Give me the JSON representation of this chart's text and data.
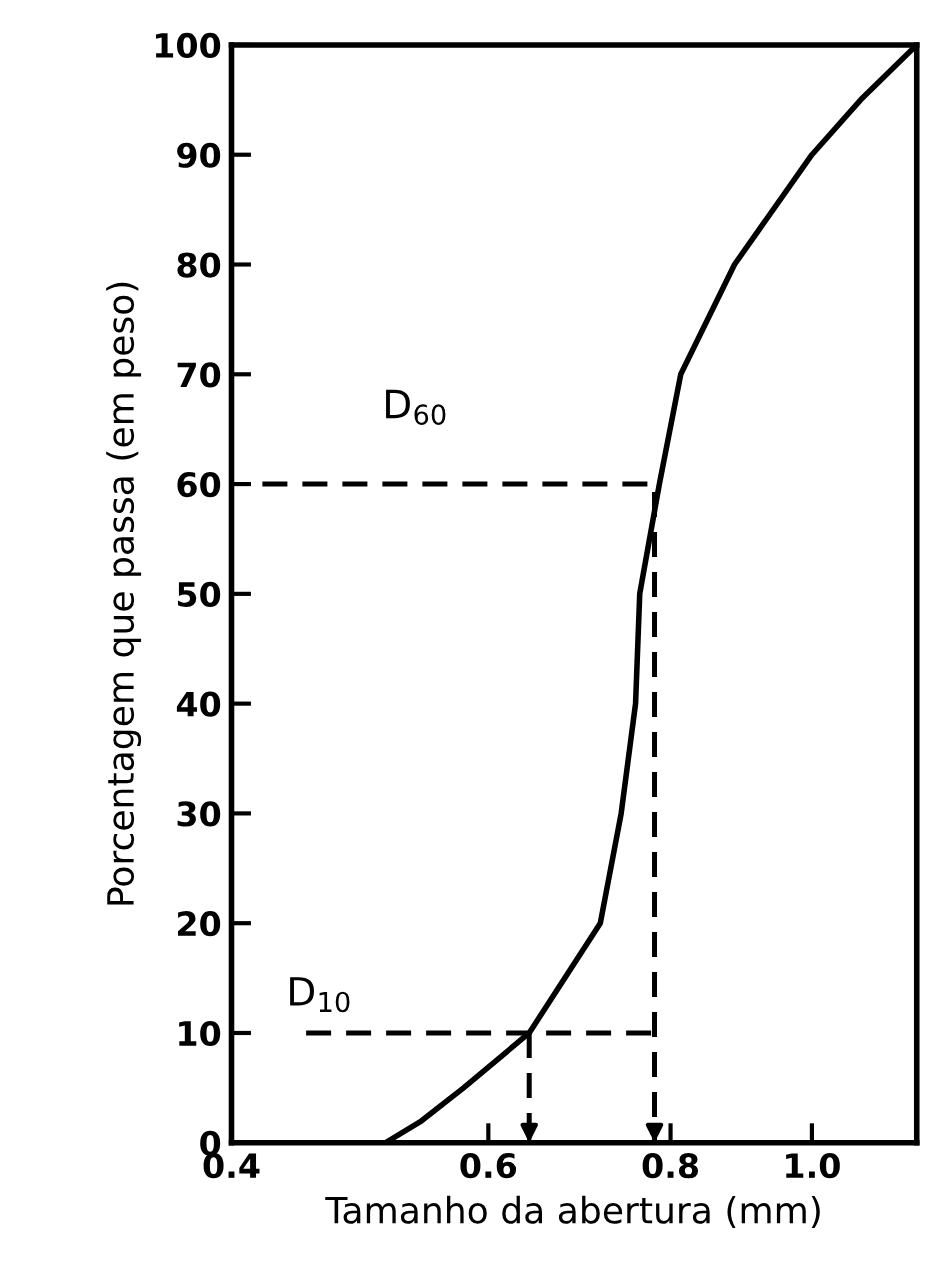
{
  "chart_data": {
    "type": "line",
    "xlabel": "Tamanho da abertura (mm)",
    "ylabel": "Porcentagem que passa (em peso)",
    "log": "x",
    "xlim": [
      0.4,
      1.18
    ],
    "ylim": [
      0,
      100
    ],
    "xticks": [
      {
        "value": 0.4,
        "label": "0.4"
      },
      {
        "value": 0.6,
        "label": "0.6"
      },
      {
        "value": 0.8,
        "label": "0.8"
      },
      {
        "value": 1.0,
        "label": "1.0"
      }
    ],
    "yticks": [
      0,
      10,
      20,
      30,
      40,
      50,
      60,
      70,
      80,
      90,
      100
    ],
    "grid": false,
    "marker": "none",
    "line_style": "solid",
    "series": [
      {
        "color": "#000000",
        "x": [
          0.51,
          0.54,
          0.577,
          0.64,
          0.716,
          0.74,
          0.757,
          0.762,
          0.786,
          0.813,
          0.885,
          1.0,
          1.08,
          1.18
        ],
        "values": [
          0,
          2,
          5,
          10,
          20,
          30,
          40,
          50,
          60,
          70,
          80,
          90,
          95,
          100
        ]
      },
      {
        "color": "#000000",
        "line_style": "dashed",
        "x": [
          0.42,
          0.78,
          0.78
        ],
        "values": [
          60,
          60,
          0
        ]
      },
      {
        "color": "#000000",
        "line_style": "dashed",
        "x": [
          0.45,
          0.78
        ],
        "values": [
          10,
          10
        ]
      },
      {
        "color": "#000000",
        "line_style": "dashed",
        "x": [
          0.64,
          0.64
        ],
        "values": [
          10,
          0
        ]
      }
    ],
    "annotations": [
      "D$_{60}$",
      "D$_{10}$"
    ]
  }
}
